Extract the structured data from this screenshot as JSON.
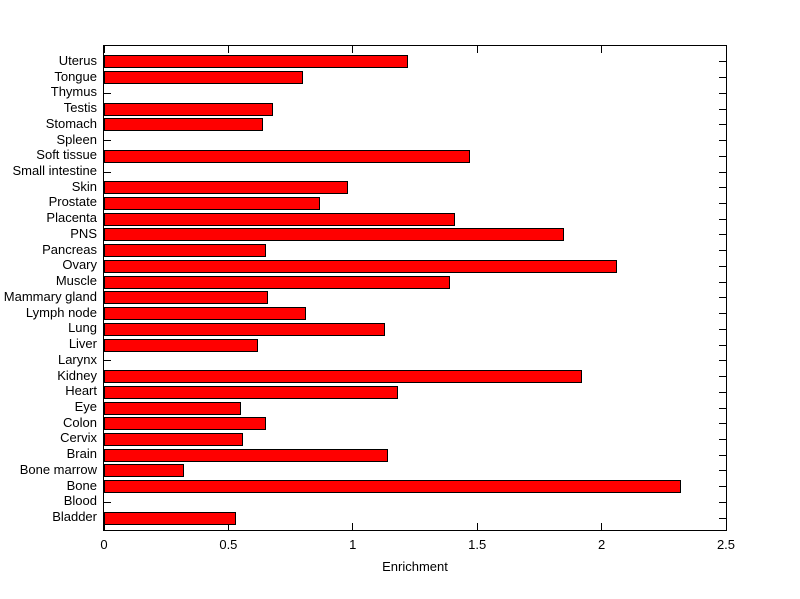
{
  "figure": {
    "background": "#ffffff"
  },
  "chart_data": {
    "type": "bar",
    "orientation": "horizontal",
    "title": "",
    "xlabel": "Enrichment",
    "ylabel": "",
    "xlim": [
      0,
      2.5
    ],
    "x_tick_values": [
      0,
      0.5,
      1,
      1.5,
      2,
      2.5
    ],
    "x_tick_labels": [
      "0",
      "0.5",
      "1",
      "1.5",
      "2",
      "2.5"
    ],
    "grid": "off",
    "legend": "none",
    "bar_color": "#ff0000",
    "bar_edge_color": "#000000",
    "categories": [
      "Uterus",
      "Tongue",
      "Thymus",
      "Testis",
      "Stomach",
      "Spleen",
      "Soft tissue",
      "Small intestine",
      "Skin",
      "Prostate",
      "Placenta",
      "PNS",
      "Pancreas",
      "Ovary",
      "Muscle",
      "Mammary gland",
      "Lymph node",
      "Lung",
      "Liver",
      "Larynx",
      "Kidney",
      "Heart",
      "Eye",
      "Colon",
      "Cervix",
      "Brain",
      "Bone marrow",
      "Bone",
      "Blood",
      "Bladder"
    ],
    "values": [
      1.22,
      0.8,
      0,
      0.68,
      0.64,
      0,
      1.47,
      0,
      0.98,
      0.87,
      1.41,
      1.85,
      0.65,
      2.06,
      1.39,
      0.66,
      0.81,
      1.13,
      0.62,
      0,
      1.92,
      1.18,
      0.55,
      0.65,
      0.56,
      1.14,
      0.32,
      2.32,
      0,
      0.53
    ],
    "category_order_note": "top-to-bottom as displayed"
  }
}
